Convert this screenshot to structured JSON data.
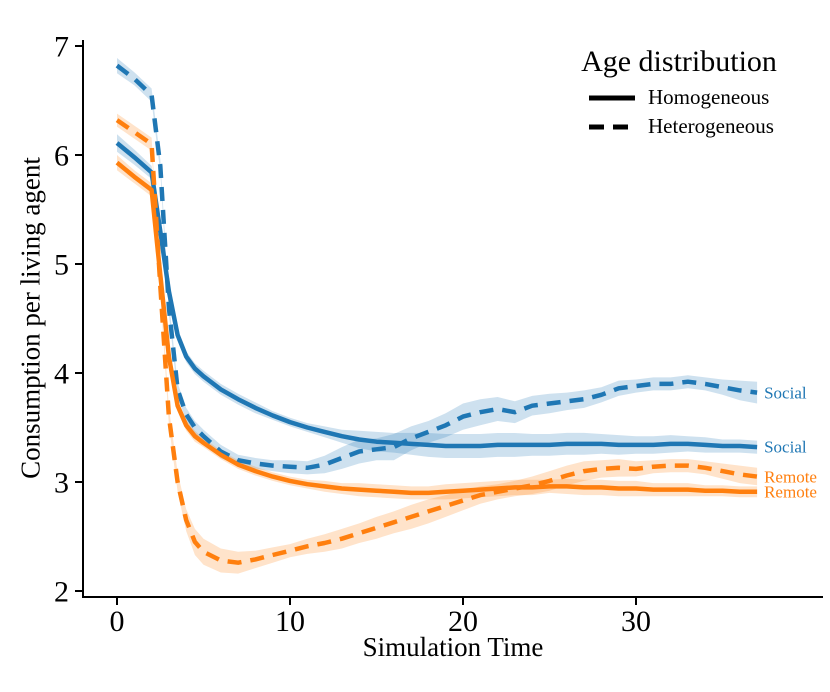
{
  "chart_data": {
    "type": "line",
    "title": "",
    "xlabel": "Simulation Time",
    "ylabel": "Consumption per living agent",
    "xlim": [
      -2,
      40.8
    ],
    "ylim": [
      1.95,
      7.05
    ],
    "xticks": [
      0,
      10,
      20,
      30
    ],
    "yticks": [
      2,
      3,
      4,
      5,
      6,
      7
    ],
    "grid": false,
    "legend": {
      "title": "Age distribution",
      "position": "upper right",
      "entries": [
        {
          "label": "Homogeneous",
          "style": "solid",
          "color": "#000000"
        },
        {
          "label": "Heterogeneous",
          "style": "dashed",
          "color": "#000000"
        }
      ]
    },
    "colors": {
      "social": "#1f77b4",
      "remote": "#ff7f0e",
      "axis": "#000000",
      "band_opacity": 0.22
    },
    "x": [
      0,
      1,
      2,
      2.5,
      3,
      3.5,
      4,
      4.5,
      5,
      6,
      7,
      8,
      9,
      10,
      11,
      12,
      13,
      14,
      15,
      16,
      17,
      18,
      19,
      20,
      21,
      22,
      23,
      24,
      25,
      26,
      27,
      28,
      29,
      30,
      31,
      32,
      33,
      34,
      35,
      36,
      37
    ],
    "series": [
      {
        "name": "Social - Homogeneous",
        "communication": "Social",
        "age_distribution": "Homogeneous",
        "style": "solid",
        "color": "#1f77b4",
        "end_label": "Social",
        "y": [
          6.11,
          5.98,
          5.84,
          5.3,
          4.75,
          4.35,
          4.15,
          4.04,
          3.97,
          3.85,
          3.76,
          3.68,
          3.61,
          3.55,
          3.5,
          3.46,
          3.42,
          3.39,
          3.37,
          3.36,
          3.35,
          3.34,
          3.33,
          3.33,
          3.33,
          3.34,
          3.34,
          3.34,
          3.34,
          3.35,
          3.35,
          3.35,
          3.34,
          3.34,
          3.34,
          3.35,
          3.35,
          3.34,
          3.33,
          3.33,
          3.32
        ],
        "spread": [
          0.08,
          0.07,
          0.06,
          0.05,
          0.05,
          0.05,
          0.05,
          0.05,
          0.05,
          0.05,
          0.05,
          0.05,
          0.04,
          0.04,
          0.04,
          0.05,
          0.06,
          0.08,
          0.09,
          0.09,
          0.1,
          0.11,
          0.11,
          0.11,
          0.11,
          0.11,
          0.11,
          0.1,
          0.1,
          0.1,
          0.1,
          0.09,
          0.09,
          0.08,
          0.08,
          0.08,
          0.07,
          0.07,
          0.06,
          0.06,
          0.06
        ]
      },
      {
        "name": "Social - Heterogeneous",
        "communication": "Social",
        "age_distribution": "Heterogeneous",
        "style": "dashed",
        "color": "#1f77b4",
        "end_label": "Social",
        "y": [
          6.82,
          6.7,
          6.55,
          5.9,
          4.6,
          3.85,
          3.62,
          3.5,
          3.42,
          3.28,
          3.2,
          3.17,
          3.15,
          3.14,
          3.13,
          3.16,
          3.22,
          3.28,
          3.3,
          3.32,
          3.4,
          3.46,
          3.52,
          3.6,
          3.64,
          3.67,
          3.64,
          3.7,
          3.72,
          3.74,
          3.76,
          3.8,
          3.86,
          3.88,
          3.9,
          3.9,
          3.92,
          3.9,
          3.87,
          3.84,
          3.82
        ],
        "spread": [
          0.07,
          0.06,
          0.06,
          0.06,
          0.06,
          0.06,
          0.06,
          0.06,
          0.06,
          0.06,
          0.05,
          0.05,
          0.05,
          0.06,
          0.06,
          0.08,
          0.1,
          0.11,
          0.1,
          0.12,
          0.11,
          0.1,
          0.11,
          0.12,
          0.12,
          0.11,
          0.1,
          0.09,
          0.09,
          0.08,
          0.08,
          0.07,
          0.07,
          0.06,
          0.06,
          0.06,
          0.06,
          0.06,
          0.07,
          0.09,
          0.1
        ]
      },
      {
        "name": "Remote - Homogeneous",
        "communication": "Remote",
        "age_distribution": "Homogeneous",
        "style": "solid",
        "color": "#ff7f0e",
        "end_label": "Remote",
        "y": [
          5.93,
          5.8,
          5.68,
          4.9,
          4.15,
          3.7,
          3.52,
          3.42,
          3.36,
          3.25,
          3.16,
          3.1,
          3.05,
          3.01,
          2.98,
          2.96,
          2.94,
          2.93,
          2.92,
          2.91,
          2.9,
          2.9,
          2.91,
          2.92,
          2.93,
          2.94,
          2.95,
          2.95,
          2.96,
          2.96,
          2.95,
          2.95,
          2.94,
          2.94,
          2.93,
          2.93,
          2.93,
          2.92,
          2.92,
          2.91,
          2.91
        ],
        "spread": [
          0.07,
          0.06,
          0.06,
          0.05,
          0.05,
          0.05,
          0.05,
          0.05,
          0.04,
          0.04,
          0.04,
          0.04,
          0.04,
          0.04,
          0.04,
          0.05,
          0.05,
          0.06,
          0.06,
          0.06,
          0.06,
          0.06,
          0.07,
          0.07,
          0.07,
          0.07,
          0.07,
          0.07,
          0.06,
          0.07,
          0.07,
          0.07,
          0.07,
          0.07,
          0.06,
          0.06,
          0.06,
          0.05,
          0.05,
          0.05,
          0.05
        ]
      },
      {
        "name": "Remote - Heterogeneous",
        "communication": "Remote",
        "age_distribution": "Heterogeneous",
        "style": "dashed",
        "color": "#ff7f0e",
        "end_label": "Remote",
        "y": [
          6.32,
          6.21,
          6.1,
          4.8,
          3.6,
          3.0,
          2.65,
          2.45,
          2.36,
          2.28,
          2.26,
          2.29,
          2.33,
          2.37,
          2.41,
          2.44,
          2.48,
          2.53,
          2.58,
          2.63,
          2.68,
          2.73,
          2.78,
          2.83,
          2.88,
          2.91,
          2.94,
          2.97,
          3.01,
          3.06,
          3.1,
          3.12,
          3.13,
          3.12,
          3.14,
          3.15,
          3.15,
          3.13,
          3.1,
          3.07,
          3.05
        ],
        "spread": [
          0.06,
          0.06,
          0.06,
          0.07,
          0.08,
          0.09,
          0.1,
          0.12,
          0.12,
          0.11,
          0.1,
          0.08,
          0.07,
          0.06,
          0.07,
          0.08,
          0.09,
          0.09,
          0.1,
          0.1,
          0.11,
          0.11,
          0.1,
          0.09,
          0.08,
          0.07,
          0.07,
          0.08,
          0.09,
          0.09,
          0.09,
          0.08,
          0.08,
          0.07,
          0.06,
          0.06,
          0.06,
          0.06,
          0.07,
          0.08,
          0.08
        ]
      }
    ]
  }
}
